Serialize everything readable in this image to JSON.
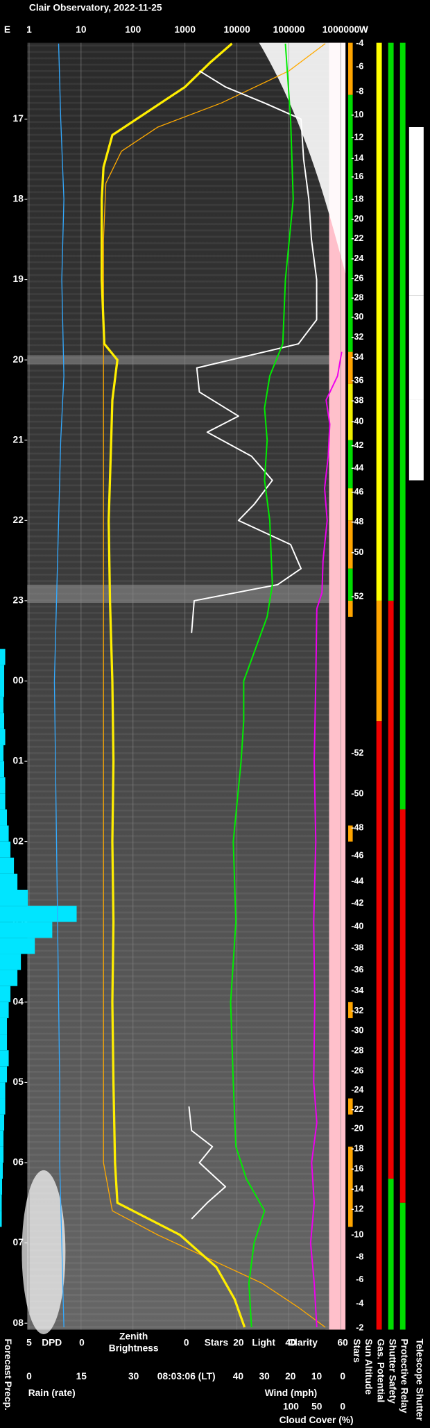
{
  "title": "Clair Observatory, 2022-11-25",
  "chart_data": {
    "type": "line",
    "time_axis": {
      "ylim": [
        16.05,
        32.08
      ],
      "ticks": [
        17,
        18,
        19,
        20,
        21,
        22,
        23,
        {
          "value": 24,
          "label": "00"
        },
        {
          "value": 25,
          "label": "01"
        },
        {
          "value": 26,
          "label": "02"
        },
        {
          "value": 27,
          "label": "03"
        },
        {
          "value": 28,
          "label": "04"
        },
        {
          "value": 29,
          "label": "05"
        },
        {
          "value": 30,
          "label": "06"
        },
        {
          "value": 31,
          "label": "07"
        },
        {
          "value": 32,
          "label": "08"
        }
      ]
    },
    "light_axis": {
      "scale": "log",
      "xlim": [
        1,
        1000000
      ],
      "xticks": [
        1,
        10,
        100,
        1000,
        10000,
        100000,
        1000000
      ],
      "left_label": "E",
      "right_label": "W",
      "grid": true
    },
    "bottom_axes": {
      "dpd": {
        "label": "DPD",
        "color": "#33aaff",
        "xlim": [
          5,
          0
        ],
        "xticks": [
          5,
          0
        ]
      },
      "zenith": {
        "label_lines": [
          "Zenith",
          "Brightness"
        ],
        "color": "#ffee00"
      },
      "stars": {
        "label": "Stars",
        "color": "#ffffff",
        "xlim": [
          0,
          60
        ],
        "xticks": [
          0,
          20,
          40,
          60
        ]
      },
      "light": {
        "label": "Light",
        "color": "#ffff00"
      },
      "clarity": {
        "label": "Clarity",
        "color": "#00ee00"
      },
      "rain": {
        "label": "Rain (rate)",
        "color": "#00e5ff",
        "xlim": [
          0,
          30
        ],
        "xticks": [
          0,
          15,
          30
        ]
      },
      "wind": {
        "label": "Wind (mph)",
        "color": "#ff66aa",
        "xlim": [
          40,
          0
        ],
        "xticks": [
          40,
          30,
          20,
          10,
          0
        ]
      },
      "cloud": {
        "label": "Cloud Cover (%)",
        "color": "#ee00ee",
        "xlim": [
          100,
          0
        ],
        "xticks": [
          100,
          50,
          0
        ]
      }
    },
    "timestamp": "08:03:06 (LT)",
    "forecast_label": "Forecast Precp.",
    "series": [
      {
        "scale": "dpd",
        "color": "#33aaff",
        "width": 1,
        "times": [
          16.06,
          17,
          18,
          19,
          20.2,
          21,
          22,
          23,
          24,
          25,
          26,
          27,
          28,
          29,
          30,
          31,
          32.05
        ],
        "values": [
          2.2,
          2.0,
          1.7,
          1.9,
          1.7,
          2.0,
          2.2,
          2.4,
          2.6,
          2.5,
          2.4,
          2.3,
          2.2,
          2.1,
          2.1,
          1.9,
          1.7
        ]
      },
      {
        "scale": "light",
        "color": "#ffaa00",
        "width": 1,
        "times": [
          16.06,
          16.4,
          16.8,
          17.1,
          17.4,
          17.8,
          18.5,
          24,
          30,
          30.6,
          30.9,
          31.2,
          31.5,
          31.8,
          32.05
        ],
        "values": [
          500000,
          100000,
          5000,
          300,
          60,
          30,
          27,
          27,
          27,
          40,
          300,
          3000,
          30000,
          150000,
          500000
        ]
      },
      {
        "scale": "light",
        "color": "#ffee00",
        "width": 2.5,
        "times": [
          16.06,
          16.3,
          16.6,
          16.9,
          17.2,
          17.6,
          18,
          19,
          19.8,
          20.0,
          20.5,
          21,
          22,
          23,
          24,
          25,
          26,
          27,
          28,
          29,
          30,
          30.5,
          30.9,
          31.3,
          31.7,
          32.05
        ],
        "values": [
          8000,
          3000,
          1000,
          200,
          40,
          27,
          25,
          25,
          28,
          50,
          40,
          38,
          34,
          36,
          40,
          42,
          40,
          42,
          40,
          42,
          45,
          50,
          800,
          4000,
          9000,
          14000
        ]
      },
      {
        "scale": "stars",
        "color": "#ffffff",
        "width": 1.5,
        "times": [
          16.4,
          16.6,
          16.8,
          17,
          17.5,
          18,
          18.5,
          19,
          19.5,
          19.8,
          20.1,
          20.4,
          20.7,
          20.9,
          21.2,
          21.5,
          21.8,
          22.0,
          22.3,
          22.6,
          22.8,
          23.0,
          23.4,
          null,
          29.3,
          29.6,
          29.8,
          30.0,
          30.3,
          30.5,
          30.7
        ],
        "values": [
          5,
          15,
          30,
          44,
          45,
          47,
          48,
          50,
          50,
          43,
          4,
          5,
          20,
          8,
          25,
          33,
          26,
          20,
          40,
          44,
          35,
          3,
          2,
          null,
          1,
          2,
          10,
          5,
          15,
          8,
          2
        ]
      },
      {
        "scale": "stars",
        "color": "#00ee00",
        "width": 1.5,
        "times": [
          16.06,
          17,
          18,
          19,
          19.8,
          20.2,
          20.6,
          21,
          21.5,
          22,
          22.8,
          23.2,
          24,
          24.5,
          25,
          26,
          27,
          28,
          29,
          29.8,
          30.2,
          30.6,
          31,
          31.5,
          32.05
        ],
        "values": [
          38,
          40,
          41,
          38,
          37,
          32,
          30,
          31,
          30,
          32,
          33,
          31,
          22,
          22,
          21,
          18,
          19,
          17,
          18,
          19,
          23,
          30,
          26,
          24,
          25
        ]
      },
      {
        "scale": "cloud",
        "color": "#ee00ee",
        "width": 1.5,
        "times": [
          19.9,
          20.2,
          20.5,
          20.8,
          21.2,
          21.6,
          22,
          22.5,
          22.9,
          23.1,
          24,
          25,
          26,
          27,
          28,
          29,
          29.5,
          30,
          30.5,
          31,
          31.5,
          32.05
        ],
        "values": [
          2,
          10,
          32,
          25,
          28,
          35,
          30,
          38,
          40,
          50,
          52,
          55,
          52,
          56,
          54,
          56,
          50,
          60,
          55,
          62,
          55,
          50
        ]
      }
    ],
    "forecast_precip": {
      "scale": "rain",
      "color": "#00e5ff",
      "bins": [
        23.6,
        23.8,
        24.0,
        24.2,
        24.4,
        24.6,
        24.8,
        25.0,
        25.2,
        25.4,
        25.6,
        25.8,
        26.0,
        26.2,
        26.4,
        26.6,
        26.8,
        27.0,
        27.2,
        27.4,
        27.6,
        27.8,
        28.0,
        28.2,
        28.4,
        28.6,
        28.8,
        29.0,
        29.2,
        29.4,
        29.6,
        29.8,
        30.0,
        30.2,
        30.4,
        30.6,
        30.8
      ],
      "values": [
        1.5,
        1.2,
        1.2,
        1.0,
        1.2,
        1.5,
        1.0,
        1.2,
        1.5,
        1.5,
        2.0,
        2.5,
        3.0,
        4.0,
        5.0,
        8.0,
        22.0,
        15.0,
        10.0,
        6.0,
        5.0,
        3.0,
        2.5,
        2.0,
        2.0,
        2.5,
        2.0,
        1.5,
        1.5,
        1.2,
        1.0,
        1.0,
        0.8,
        0.6,
        0.5,
        0.5
      ]
    },
    "sun_altitude": {
      "label": "Sun Altitude",
      "times": [
        16.06,
        16.35,
        16.66,
        16.95,
        17.23,
        17.49,
        17.72,
        18.0,
        18.25,
        18.49,
        18.74,
        18.99,
        19.23,
        19.47,
        19.72,
        19.97,
        20.26,
        20.51,
        20.77,
        21.07,
        21.35,
        21.65,
        22.02,
        22.4,
        22.95,
        24.9,
        25.41,
        25.83,
        26.18,
        26.5,
        26.77,
        27.06,
        27.33,
        27.6,
        27.86,
        28.11,
        28.36,
        28.61,
        28.86,
        29.1,
        29.34,
        29.58,
        29.83,
        30.08,
        30.33,
        30.58,
        30.9,
        31.18,
        31.46,
        31.76,
        32.06
      ],
      "values": [
        -4,
        -6,
        -8,
        -10,
        -12,
        -14,
        -16,
        -18,
        -20,
        -22,
        -24,
        -26,
        -28,
        -30,
        -32,
        -34,
        -36,
        -38,
        -40,
        -42,
        -44,
        -46,
        -48,
        -50,
        -52,
        -52,
        -50,
        -48,
        -46,
        -44,
        -42,
        -40,
        -38,
        -36,
        -34,
        -32,
        -30,
        -28,
        -26,
        -24,
        -22,
        -20,
        -18,
        -16,
        -14,
        -12,
        -10,
        -8,
        -6,
        -4,
        -2
      ]
    },
    "status_columns": [
      {
        "label": "Stars",
        "segments": [
          {
            "start": 16.05,
            "end": 16.7,
            "color": "#ffa500"
          },
          {
            "start": 16.7,
            "end": 19.9,
            "color": "#00dd00"
          },
          {
            "start": 19.9,
            "end": 20.3,
            "color": "#ffa500"
          },
          {
            "start": 20.3,
            "end": 21.0,
            "color": "#eeee00"
          },
          {
            "start": 21.0,
            "end": 21.6,
            "color": "#00dd00"
          },
          {
            "start": 21.6,
            "end": 22.0,
            "color": "#eeee00"
          },
          {
            "start": 22.0,
            "end": 22.6,
            "color": "#ffa500"
          },
          {
            "start": 22.6,
            "end": 23.0,
            "color": "#00dd00"
          },
          {
            "start": 23.0,
            "end": 23.2,
            "color": "#ffa500"
          },
          {
            "start": 25.8,
            "end": 26.0,
            "color": "#ffa500"
          },
          {
            "start": 28.0,
            "end": 28.2,
            "color": "#ffa500"
          },
          {
            "start": 29.2,
            "end": 29.4,
            "color": "#ffa500"
          },
          {
            "start": 29.8,
            "end": 30.8,
            "color": "#ffa500"
          }
        ]
      },
      {
        "label": "Gas. Potential",
        "segments": [
          {
            "start": 16.05,
            "end": 23.0,
            "color": "#ffff00"
          },
          {
            "start": 23.0,
            "end": 24.5,
            "color": "#ffa500"
          },
          {
            "start": 24.5,
            "end": 32.08,
            "color": "#ee0000"
          }
        ]
      },
      {
        "label": "Shutter Safety",
        "segments": [
          {
            "start": 16.05,
            "end": 23.0,
            "color": "#00dd00"
          },
          {
            "start": 23.0,
            "end": 30.2,
            "color": "#ee0000"
          },
          {
            "start": 30.2,
            "end": 32.08,
            "color": "#00dd00"
          }
        ]
      },
      {
        "label": "Protective Relay",
        "segments": [
          {
            "start": 16.05,
            "end": 25.6,
            "color": "#00dd00"
          },
          {
            "start": 25.6,
            "end": 30.5,
            "color": "#ee0000"
          },
          {
            "start": 30.5,
            "end": 32.08,
            "color": "#00dd00"
          }
        ]
      },
      {
        "label": "Telescope Shutter",
        "segments": [
          {
            "start": 17.1,
            "end": 19.2,
            "color": "#ffffff"
          },
          {
            "start": 19.2,
            "end": 20.5,
            "color": "#ffffff"
          },
          {
            "start": 20.5,
            "end": 21.5,
            "color": "#ffffff"
          }
        ]
      }
    ]
  }
}
